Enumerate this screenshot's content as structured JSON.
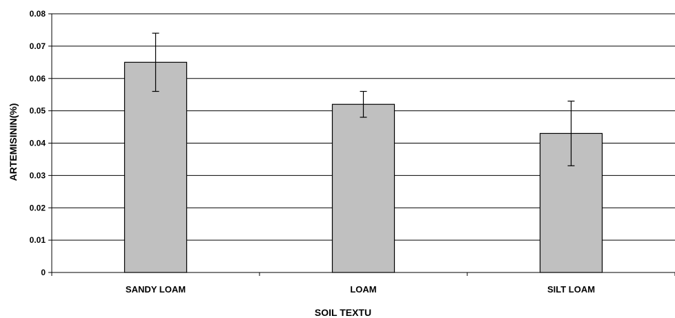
{
  "chart_data": {
    "type": "bar",
    "categories": [
      "SANDY LOAM",
      "LOAM",
      "SILT LOAM"
    ],
    "values": [
      0.065,
      0.052,
      0.043
    ],
    "error_bars": [
      {
        "low": 0.056,
        "high": 0.074
      },
      {
        "low": 0.048,
        "high": 0.056
      },
      {
        "low": 0.033,
        "high": 0.053
      }
    ],
    "xlabel": "SOIL TEXTU",
    "ylabel": "ARTEMISININ(%)",
    "ylim": [
      0,
      0.08
    ],
    "yticks": [
      "0",
      "0.01",
      "0.02",
      "0.03",
      "0.04",
      "0.05",
      "0.06",
      "0.07",
      "0.08"
    ],
    "grid": "horizontal",
    "colors": {
      "bar_fill": "#c0c0c0",
      "bar_stroke": "#000000",
      "grid": "#000000"
    }
  }
}
